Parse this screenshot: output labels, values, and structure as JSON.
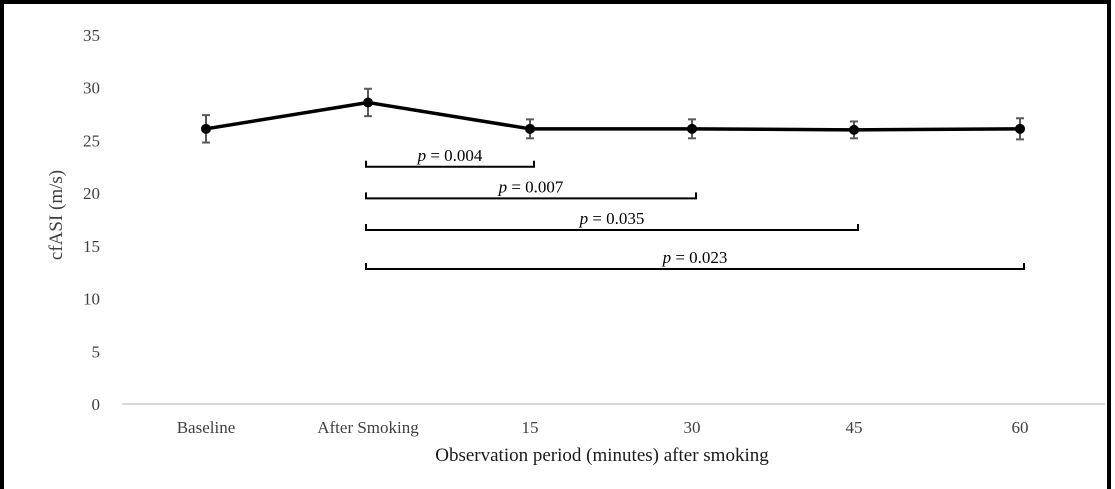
{
  "chart_data": {
    "type": "line",
    "title": "",
    "xlabel": "Observation period (minutes) after smoking",
    "ylabel": "cfASI (m/s)",
    "ylim": [
      0,
      35
    ],
    "yticks": [
      0,
      5,
      10,
      15,
      20,
      25,
      30,
      35
    ],
    "categories": [
      "Baseline",
      "After Smoking",
      "15",
      "30",
      "45",
      "60"
    ],
    "series": [
      {
        "values": [
          26.1,
          28.6,
          26.1,
          26.1,
          26.0,
          26.1
        ],
        "error": [
          1.3,
          1.3,
          0.9,
          0.9,
          0.8,
          1.0
        ]
      }
    ],
    "grid": false,
    "annotations": [
      {
        "p_label": "p",
        "text": " = 0.004",
        "from": 1,
        "to": 2,
        "y": 22.5
      },
      {
        "p_label": "p",
        "text": " = 0.007",
        "from": 1,
        "to": 3,
        "y": 19.5
      },
      {
        "p_label": "p",
        "text": " = 0.035",
        "from": 1,
        "to": 4,
        "y": 16.5
      },
      {
        "p_label": "p",
        "text": " = 0.023",
        "from": 1,
        "to": 5,
        "y": 12.8
      }
    ],
    "colors": {
      "line": "#000000",
      "errorbar": "#595959",
      "axis": "#bfbfbf"
    }
  }
}
